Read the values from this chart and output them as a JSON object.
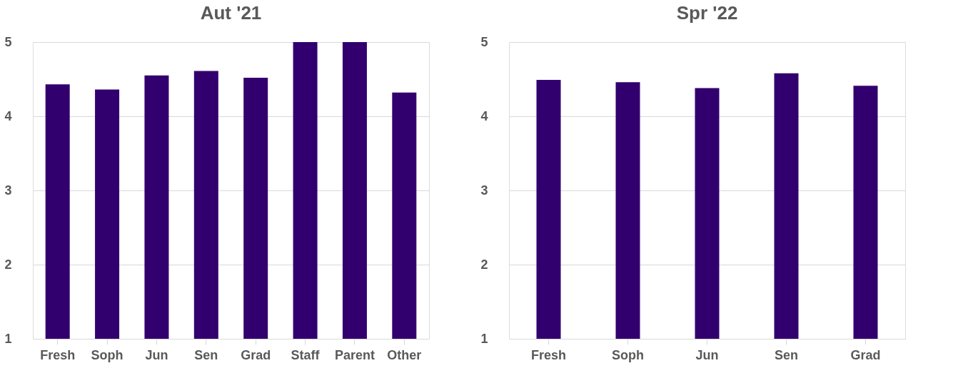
{
  "chart_data": [
    {
      "type": "bar",
      "title": "Aut '21",
      "categories": [
        "Fresh",
        "Soph",
        "Jun",
        "Sen",
        "Grad",
        "Staff",
        "Parent",
        "Other"
      ],
      "values": [
        4.43,
        4.36,
        4.55,
        4.61,
        4.52,
        5,
        5,
        4.32
      ],
      "color": "#32006e",
      "ylim": [
        1,
        5
      ],
      "yticks": [
        1,
        2,
        3,
        4,
        5
      ],
      "grid": "y"
    },
    {
      "type": "bar",
      "title": "Spr '22",
      "categories": [
        "Fresh",
        "Soph",
        "Jun",
        "Sen",
        "Grad"
      ],
      "values": [
        4.49,
        4.46,
        4.38,
        4.58,
        4.41
      ],
      "color": "#32006e",
      "ylim": [
        1,
        5
      ],
      "yticks": [
        1,
        2,
        3,
        4,
        5
      ],
      "grid": "y"
    }
  ]
}
